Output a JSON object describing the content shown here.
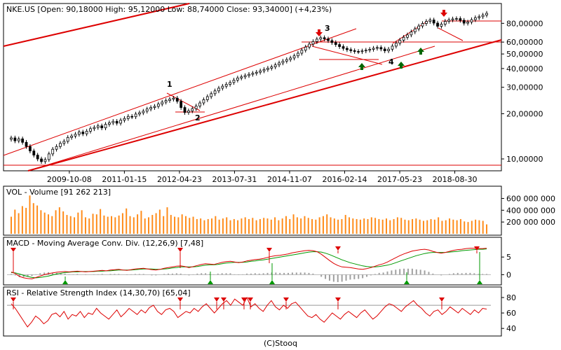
{
  "footer": "(C)Stooq",
  "colors": {
    "trend": "#dd0000",
    "up": "#ffffff",
    "down": "#000000",
    "volume": "#ff8c1a",
    "macd": "#dd0000",
    "signal": "#009900",
    "hist": "#a0a0a0",
    "up_arrow": "#006600",
    "down_arrow": "#dd0000",
    "marker": "#dd0000",
    "label": "#0000cc"
  },
  "chart_data": [
    {
      "type": "candlestick",
      "title": "NKE.US [Open: 90,18000  High: 95,12000  Low: 88,74000  Close: 93,34000] (+4,23%)",
      "scale": "log",
      "ylim": [
        8.7,
        105
      ],
      "y_ticks": [
        10,
        20,
        30,
        40,
        50,
        60,
        80
      ],
      "y_tick_labels": [
        "10,00000",
        "20,00000",
        "30,00000",
        "40,00000",
        "50,00000",
        "60,00000",
        "80,00000"
      ],
      "x_tick_labels": [
        "2009-10-08",
        "2011-01-15",
        "2012-04-23",
        "2013-07-31",
        "2014-11-07",
        "2016-02-14",
        "2017-05-23",
        "2018-08-30"
      ],
      "x_tick_dates": [
        "2009-10-08",
        "2011-01-15",
        "2012-04-23",
        "2013-07-31",
        "2014-11-07",
        "2016-02-14",
        "2017-05-23",
        "2018-08-30"
      ],
      "x_range": [
        "2008-05-01",
        "2019-06-30"
      ],
      "grid": false,
      "closes": [
        13.8,
        13.2,
        13.6,
        12.9,
        12.1,
        11.3,
        10.6,
        10.0,
        9.6,
        9.9,
        10.8,
        11.6,
        12.1,
        12.7,
        13.1,
        13.9,
        14.2,
        14.6,
        15.1,
        14.7,
        15.3,
        15.9,
        16.2,
        16.6,
        16.1,
        17.0,
        17.4,
        17.8,
        17.3,
        18.1,
        18.6,
        19.2,
        19.1,
        19.9,
        20.3,
        20.8,
        21.5,
        22.0,
        22.4,
        23.2,
        23.9,
        24.5,
        25.0,
        25.4,
        24.2,
        22.0,
        20.4,
        20.9,
        21.6,
        22.5,
        23.6,
        24.8,
        26.0,
        27.2,
        28.4,
        29.6,
        30.5,
        31.4,
        32.3,
        33.5,
        34.6,
        35.2,
        35.9,
        36.6,
        37.2,
        37.8,
        38.6,
        39.4,
        40.2,
        41.0,
        42.3,
        43.6,
        44.8,
        45.9,
        47.0,
        48.6,
        50.6,
        53.0,
        55.6,
        58.2,
        60.5,
        62.8,
        64.2,
        63.0,
        61.4,
        59.6,
        57.8,
        56.0,
        54.5,
        53.4,
        52.6,
        52.0,
        51.8,
        52.4,
        53.0,
        53.7,
        54.6,
        55.2,
        54.0,
        52.5,
        53.8,
        56.4,
        59.0,
        61.8,
        64.6,
        67.0,
        70.2,
        73.5,
        76.8,
        79.8,
        82.4,
        84.2,
        80.3,
        76.5,
        79.0,
        82.5,
        84.3,
        85.6,
        86.0,
        83.8,
        80.2,
        81.6,
        84.6,
        87.2,
        88.6,
        90.8,
        93.3
      ],
      "labels": [
        "1",
        "2",
        "3",
        "4"
      ],
      "price_levels": [
        86,
        62
      ],
      "bottom_line": 9.05
    },
    {
      "type": "bar",
      "title": "VOL - Volume [91 262 213]",
      "ylim": [
        0,
        760000000
      ],
      "y_ticks": [
        200000000,
        400000000,
        600000000
      ],
      "y_tick_labels": [
        "200 000 000",
        "400 000 000",
        "600 000 000"
      ],
      "values": [
        290,
        410,
        350,
        470,
        440,
        650,
        520,
        480,
        400,
        360,
        330,
        300,
        400,
        450,
        380,
        320,
        300,
        280,
        360,
        400,
        280,
        260,
        340,
        330,
        420,
        310,
        290,
        300,
        280,
        310,
        350,
        430,
        300,
        280,
        330,
        390,
        260,
        280,
        320,
        350,
        410,
        300,
        450,
        320,
        290,
        280,
        330,
        300,
        270,
        290,
        250,
        260,
        230,
        250,
        260,
        300,
        240,
        260,
        280,
        230,
        250,
        230,
        260,
        280,
        250,
        270,
        230,
        250,
        270,
        260,
        240,
        280,
        230,
        260,
        300,
        250,
        330,
        280,
        260,
        300,
        270,
        250,
        240,
        280,
        300,
        330,
        280,
        260,
        240,
        250,
        320,
        280,
        260,
        250,
        240,
        260,
        250,
        280,
        270,
        250,
        240,
        260,
        230,
        250,
        280,
        270,
        240,
        230,
        250,
        260,
        240,
        220,
        230,
        250,
        240,
        280,
        220,
        230,
        260,
        240,
        230,
        250,
        210,
        200,
        220,
        240,
        230,
        220,
        160
      ]
    },
    {
      "type": "line",
      "title": "MACD - Moving Average Conv. Div. (12,26,9) [7,48]",
      "ylim": [
        -2.5,
        9.8
      ],
      "y_ticks": [
        0,
        5
      ],
      "y_tick_labels": [
        "0",
        "5"
      ],
      "series": [
        {
          "name": "MACD",
          "values": [
            0.8,
            0.3,
            -0.5,
            -0.9,
            -1.1,
            -1.2,
            -0.8,
            -0.4,
            0.0,
            0.3,
            0.5,
            0.7,
            0.8,
            0.9,
            0.8,
            0.9,
            1.0,
            0.9,
            0.8,
            0.9,
            1.0,
            1.1,
            1.2,
            1.1,
            1.3,
            1.4,
            1.5,
            1.3,
            1.2,
            1.4,
            1.6,
            1.7,
            1.8,
            1.6,
            1.4,
            1.3,
            1.5,
            1.8,
            2.0,
            2.2,
            2.4,
            2.5,
            2.3,
            2.0,
            2.3,
            2.6,
            2.9,
            3.1,
            3.0,
            2.9,
            3.2,
            3.5,
            3.7,
            3.8,
            3.6,
            3.4,
            3.6,
            3.9,
            4.1,
            4.3,
            4.4,
            4.6,
            4.9,
            5.2,
            5.4,
            5.5,
            5.7,
            5.9,
            6.2,
            6.4,
            6.6,
            6.8,
            6.9,
            6.8,
            6.5,
            5.8,
            4.9,
            4.0,
            3.2,
            2.6,
            2.2,
            2.1,
            2.0,
            1.8,
            1.6,
            1.5,
            1.7,
            2.0,
            2.4,
            2.8,
            3.1,
            3.6,
            4.2,
            4.8,
            5.4,
            5.9,
            6.3,
            6.7,
            6.9,
            7.1,
            7.2,
            7.0,
            6.6,
            6.3,
            6.1,
            6.3,
            6.6,
            6.9,
            7.1,
            7.2,
            7.4,
            7.5,
            7.5,
            7.4,
            7.4,
            7.5
          ]
        },
        {
          "name": "Signal",
          "values": [
            0.6,
            0.5,
            0.2,
            -0.2,
            -0.5,
            -0.8,
            -0.9,
            -0.8,
            -0.6,
            -0.4,
            -0.1,
            0.2,
            0.4,
            0.6,
            0.7,
            0.8,
            0.8,
            0.9,
            0.9,
            0.9,
            0.9,
            1.0,
            1.0,
            1.1,
            1.1,
            1.2,
            1.3,
            1.3,
            1.3,
            1.3,
            1.4,
            1.5,
            1.6,
            1.6,
            1.6,
            1.5,
            1.5,
            1.6,
            1.7,
            1.9,
            2.0,
            2.2,
            2.2,
            2.2,
            2.2,
            2.3,
            2.5,
            2.7,
            2.8,
            2.8,
            2.9,
            3.1,
            3.3,
            3.4,
            3.5,
            3.5,
            3.5,
            3.6,
            3.8,
            3.9,
            4.1,
            4.2,
            4.4,
            4.6,
            4.8,
            5.0,
            5.2,
            5.4,
            5.6,
            5.8,
            6.0,
            6.2,
            6.4,
            6.5,
            6.5,
            6.4,
            6.1,
            5.7,
            5.2,
            4.7,
            4.2,
            3.8,
            3.4,
            3.1,
            2.8,
            2.5,
            2.3,
            2.2,
            2.2,
            2.3,
            2.5,
            2.7,
            3.0,
            3.4,
            3.8,
            4.2,
            4.6,
            5.0,
            5.4,
            5.7,
            6.0,
            6.2,
            6.3,
            6.3,
            6.3,
            6.3,
            6.4,
            6.5,
            6.6,
            6.8,
            6.9,
            7.0,
            7.1,
            7.2,
            7.2,
            7.3
          ]
        }
      ]
    },
    {
      "type": "line",
      "title": "RSI - Relative Strength Index (14,30,70) [65,04]",
      "ylim": [
        32,
        90
      ],
      "y_ticks": [
        40,
        60,
        80
      ],
      "y_tick_labels": [
        "40",
        "60",
        "80"
      ],
      "reference_lines": [
        30,
        70
      ],
      "values": [
        72,
        66,
        58,
        50,
        42,
        48,
        56,
        52,
        46,
        50,
        58,
        60,
        55,
        62,
        52,
        58,
        56,
        62,
        54,
        60,
        58,
        66,
        60,
        56,
        52,
        58,
        64,
        55,
        60,
        66,
        62,
        58,
        64,
        60,
        67,
        70,
        62,
        58,
        64,
        66,
        62,
        54,
        58,
        62,
        60,
        66,
        62,
        68,
        72,
        66,
        60,
        66,
        72,
        76,
        70,
        78,
        74,
        70,
        80,
        68,
        72,
        66,
        62,
        70,
        76,
        68,
        64,
        70,
        66,
        72,
        74,
        68,
        62,
        56,
        54,
        58,
        52,
        48,
        54,
        60,
        56,
        52,
        58,
        62,
        58,
        54,
        60,
        64,
        58,
        52,
        56,
        62,
        68,
        72,
        70,
        66,
        62,
        68,
        72,
        76,
        70,
        66,
        60,
        56,
        62,
        64,
        58,
        62,
        68,
        64,
        60,
        66,
        62,
        58,
        64,
        60,
        66,
        65
      ]
    }
  ]
}
